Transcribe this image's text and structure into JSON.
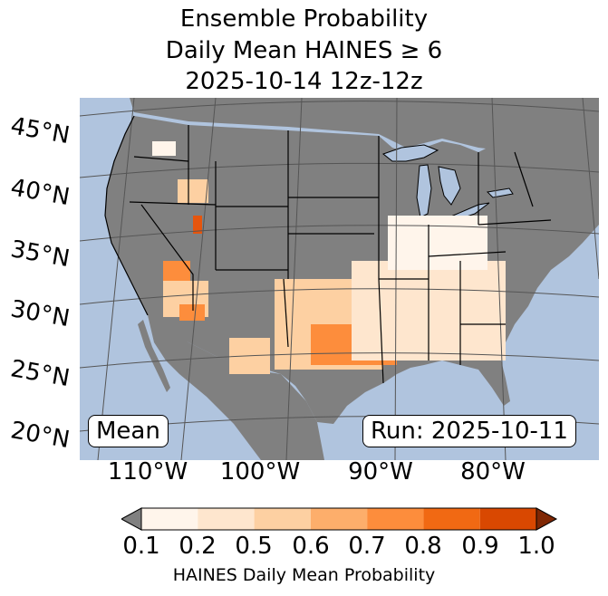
{
  "title": {
    "line1": "Ensemble Probability",
    "line2": "Daily Mean HAINES ≥ 6",
    "line3": "2025-10-14 12z-12z"
  },
  "map": {
    "projection": "conus",
    "ocean_color": "#b0c4de",
    "land_color": "#808080",
    "lake_color": "#b0c4de",
    "boundary_color": "#000000",
    "gridline_color": "#555555",
    "stat_label": "Mean",
    "run_label": "Run: 2025-10-11",
    "lat_labels": [
      "45°N",
      "40°N",
      "35°N",
      "30°N",
      "25°N",
      "20°N"
    ],
    "lon_labels": [
      "110°W",
      "100°W",
      "90°W",
      "80°W"
    ],
    "probability_regions": [
      {
        "area": "Oregon / Washington interior",
        "level": "0.1-0.2",
        "color": "#fff5eb"
      },
      {
        "area": "Idaho / Wyoming",
        "level": "0.2-0.6",
        "color": "#fdd0a2"
      },
      {
        "area": "Northern Utah",
        "level": "0.8-0.9",
        "color": "#e6550d"
      },
      {
        "area": "Southern Nevada / California",
        "level": "0.5-0.8",
        "color": "#fd8d3c"
      },
      {
        "area": "Arizona",
        "level": "0.2-0.5",
        "color": "#fdd0a2"
      },
      {
        "area": "West Texas / New Mexico border",
        "level": "0.2-0.5",
        "color": "#fdd0a2"
      },
      {
        "area": "Texas / Louisiana",
        "level": "0.5-0.8",
        "color": "#fd8d3c"
      },
      {
        "area": "Southeast US",
        "level": "0.1-0.2",
        "color": "#fee6ce"
      },
      {
        "area": "Ohio Valley / Mid-Atlantic",
        "level": "0.1-0.2",
        "color": "#fff5eb"
      }
    ]
  },
  "colorbar": {
    "label": "HAINES Daily Mean Probability",
    "ticks": [
      "0.1",
      "0.2",
      "0.5",
      "0.6",
      "0.7",
      "0.8",
      "0.9",
      "1.0"
    ],
    "under_color": "#808080",
    "over_color": "#7f2704",
    "colors": [
      "#fff5eb",
      "#fee6ce",
      "#fdd0a2",
      "#fdae6b",
      "#fd8d3c",
      "#f16913",
      "#d94801"
    ]
  }
}
